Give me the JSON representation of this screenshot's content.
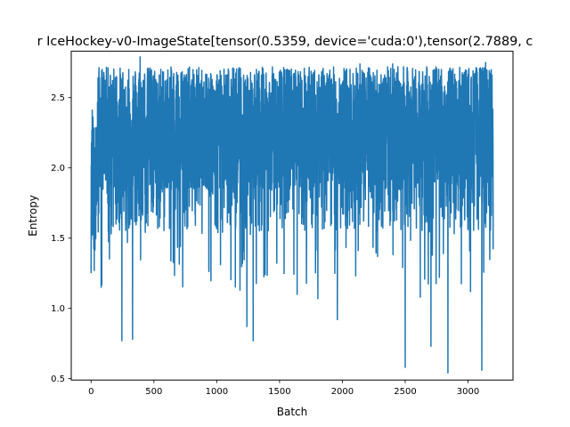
{
  "chart_data": {
    "type": "line",
    "title": "r IceHockey-v0-ImageState[tensor(0.5359, device='cuda:0'),tensor(2.7889, c",
    "xlabel": "Batch",
    "ylabel": "Entropy",
    "xlim": [
      -158,
      3358
    ],
    "ylim": [
      0.49,
      2.83
    ],
    "x_ticks": [
      0,
      500,
      1000,
      1500,
      2000,
      2500,
      3000
    ],
    "x_tick_labels": [
      "0",
      "500",
      "1000",
      "1500",
      "2000",
      "2500",
      "3000"
    ],
    "y_ticks": [
      0.5,
      1.0,
      1.5,
      2.0,
      2.5
    ],
    "y_tick_labels": [
      "0.5",
      "1.0",
      "1.5",
      "2.0",
      "2.5"
    ],
    "grid": false,
    "legend": "none",
    "series": [
      {
        "color": "#1f77b4",
        "x_start": 0,
        "x_end": 3200,
        "n_points": 3201,
        "y_min": 0.54,
        "y_max": 2.79,
        "y_mean": 2.18,
        "notable_points": [
          {
            "x": 0,
            "y": 1.25
          },
          {
            "x": 10,
            "y": 2.3
          },
          {
            "x": 25,
            "y": 1.27
          },
          {
            "x": 55,
            "y": 2.64
          },
          {
            "x": 80,
            "y": 1.15
          },
          {
            "x": 160,
            "y": 1.53
          },
          {
            "x": 245,
            "y": 0.77
          },
          {
            "x": 300,
            "y": 2.7
          },
          {
            "x": 330,
            "y": 0.78
          },
          {
            "x": 390,
            "y": 2.79
          },
          {
            "x": 470,
            "y": 2.71
          },
          {
            "x": 710,
            "y": 1.44
          },
          {
            "x": 1030,
            "y": 1.31
          },
          {
            "x": 1185,
            "y": 1.13
          },
          {
            "x": 1240,
            "y": 0.87
          },
          {
            "x": 1290,
            "y": 0.77
          },
          {
            "x": 1385,
            "y": 1.24
          },
          {
            "x": 1640,
            "y": 1.1
          },
          {
            "x": 1805,
            "y": 1.07
          },
          {
            "x": 1960,
            "y": 0.92
          },
          {
            "x": 2140,
            "y": 2.74
          },
          {
            "x": 2280,
            "y": 1.37
          },
          {
            "x": 2400,
            "y": 2.74
          },
          {
            "x": 2500,
            "y": 0.58
          },
          {
            "x": 2620,
            "y": 1.08
          },
          {
            "x": 2705,
            "y": 0.73
          },
          {
            "x": 2840,
            "y": 0.54
          },
          {
            "x": 3020,
            "y": 1.12
          },
          {
            "x": 3110,
            "y": 0.56
          },
          {
            "x": 3140,
            "y": 2.75
          },
          {
            "x": 3200,
            "y": 1.42
          }
        ]
      }
    ]
  }
}
